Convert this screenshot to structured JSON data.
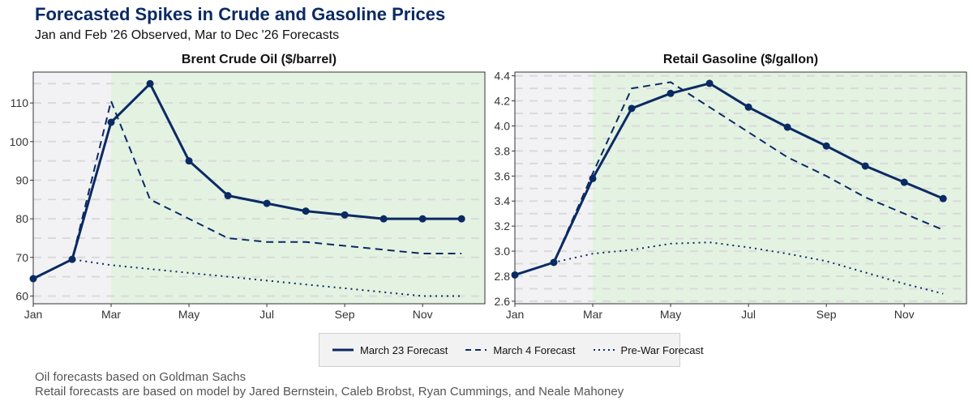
{
  "title": "Forecasted Spikes in Crude and Gasoline Prices",
  "subtitle": "Jan and Feb '26 Observed, Mar to Dec '26 Forecasts",
  "colors": {
    "navy": "#0a2a63",
    "observed_bg": "#f2f2f4",
    "forecast_bg": "#e4f2e2",
    "grid": "#d9d9d9"
  },
  "legend": [
    {
      "label": "March 23 Forecast",
      "style": "solid"
    },
    {
      "label": "March 4 Forecast",
      "style": "dashed"
    },
    {
      "label": "Pre-War Forecast",
      "style": "dotted"
    }
  ],
  "footnotes": [
    "Oil forecasts based on Goldman Sachs",
    "Retail forecasts are based on model by Jared Bernstein, Caleb Brobst, Ryan Cummings, and Neale Mahoney"
  ],
  "chart_data": [
    {
      "type": "line",
      "title": "Brent Crude Oil ($/barrel)",
      "x": [
        "Jan",
        "Feb",
        "Mar",
        "Apr",
        "May",
        "Jun",
        "Jul",
        "Aug",
        "Sep",
        "Oct",
        "Nov",
        "Dec"
      ],
      "xticks": [
        "Jan",
        "Mar",
        "May",
        "Jul",
        "Sep",
        "Nov"
      ],
      "yticks": [
        60,
        70,
        80,
        90,
        100,
        110
      ],
      "ylim": [
        58,
        118
      ],
      "observed_region": [
        "Jan",
        "Mar"
      ],
      "forecast_region": [
        "Mar",
        "Dec"
      ],
      "series": [
        {
          "name": "March 23 Forecast",
          "style": "solid",
          "markers": true,
          "values": [
            64.5,
            69.5,
            105,
            115,
            95,
            86,
            84,
            82,
            81,
            80,
            80,
            80
          ]
        },
        {
          "name": "March 4 Forecast",
          "style": "dashed",
          "markers": false,
          "values": [
            64.5,
            69.5,
            110.5,
            85,
            80,
            75,
            74,
            74,
            73,
            72,
            71,
            71
          ]
        },
        {
          "name": "Pre-War Forecast",
          "style": "dotted",
          "markers": false,
          "values": [
            64.5,
            69.5,
            68,
            67,
            66,
            65,
            64,
            63,
            62,
            61,
            60,
            60
          ]
        }
      ]
    },
    {
      "type": "line",
      "title": "Retail Gasoline ($/gallon)",
      "x": [
        "Jan",
        "Feb",
        "Mar",
        "Apr",
        "May",
        "Jun",
        "Jul",
        "Aug",
        "Sep",
        "Oct",
        "Nov",
        "Dec"
      ],
      "xticks": [
        "Jan",
        "Mar",
        "May",
        "Jul",
        "Sep",
        "Nov"
      ],
      "yticks": [
        2.6,
        2.8,
        3.0,
        3.2,
        3.4,
        3.6,
        3.8,
        4.0,
        4.2,
        4.4
      ],
      "ylim": [
        2.58,
        4.43
      ],
      "observed_region": [
        "Jan",
        "Mar"
      ],
      "forecast_region": [
        "Mar",
        "Dec"
      ],
      "series": [
        {
          "name": "March 23 Forecast",
          "style": "solid",
          "markers": true,
          "values": [
            2.81,
            2.91,
            3.58,
            4.14,
            4.26,
            4.34,
            4.15,
            3.99,
            3.84,
            3.68,
            3.55,
            3.42
          ]
        },
        {
          "name": "March 4 Forecast",
          "style": "dashed",
          "markers": false,
          "values": [
            2.81,
            2.91,
            3.62,
            4.3,
            4.35,
            4.15,
            3.95,
            3.75,
            3.6,
            3.43,
            3.3,
            3.17
          ]
        },
        {
          "name": "Pre-War Forecast",
          "style": "dotted",
          "markers": false,
          "values": [
            2.81,
            2.91,
            2.98,
            3.01,
            3.06,
            3.07,
            3.03,
            2.98,
            2.92,
            2.83,
            2.74,
            2.66
          ]
        }
      ]
    }
  ]
}
